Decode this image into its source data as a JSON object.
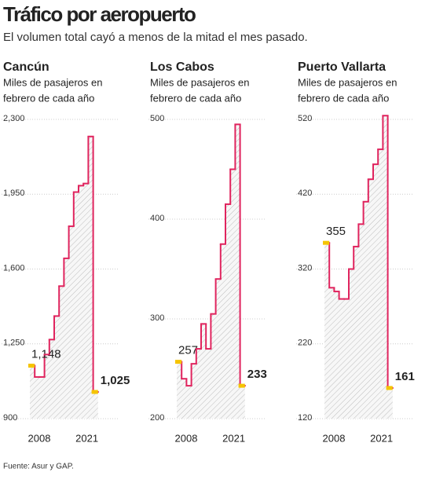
{
  "title": "Tráfico por aeropuerto",
  "subtitle": "El volumen total cayó a menos de la mitad el mes pasado.",
  "source": "Fuente: Asur y GAP.",
  "chart_data": [
    {
      "type": "step",
      "title": "Cancún",
      "subtitle_lines": [
        "Miles de pasajeros en",
        "febrero de cada año"
      ],
      "color": "#e0245e",
      "marker_color": "#f5c400",
      "categories": [
        "2008",
        null,
        null,
        null,
        null,
        null,
        null,
        null,
        null,
        null,
        null,
        null,
        null,
        "2021"
      ],
      "values": [
        1148,
        1095,
        1095,
        1200,
        1270,
        1380,
        1520,
        1650,
        1800,
        1960,
        1990,
        2000,
        2220,
        1025
      ],
      "value_labels": [
        "1,148",
        null,
        null,
        null,
        null,
        null,
        null,
        null,
        null,
        null,
        null,
        null,
        null,
        "1,025"
      ],
      "ylim": [
        900,
        2300
      ],
      "yticks": [
        900,
        {
          "value": 1250,
          "label": "1,250"
        },
        {
          "value": 1600,
          "label": "1,600"
        },
        {
          "value": 1950,
          "label": "1,950"
        },
        {
          "value": 2300,
          "label": "2,300"
        }
      ],
      "grid": true
    },
    {
      "type": "step",
      "title": "Los Cabos",
      "subtitle_lines": [
        "Miles de pasajeros en",
        "febrero de cada año"
      ],
      "color": "#e0245e",
      "marker_color": "#f5c400",
      "categories": [
        "2008",
        null,
        null,
        null,
        null,
        null,
        null,
        null,
        null,
        null,
        null,
        null,
        null,
        "2021"
      ],
      "values": [
        257,
        240,
        233,
        255,
        270,
        295,
        270,
        305,
        340,
        375,
        415,
        450,
        495,
        233
      ],
      "value_labels": [
        "257",
        null,
        null,
        null,
        null,
        null,
        null,
        null,
        null,
        null,
        null,
        null,
        null,
        "233"
      ],
      "ylim": [
        200,
        500
      ],
      "yticks": [
        200,
        300,
        400,
        500
      ],
      "grid": true
    },
    {
      "type": "step",
      "title": "Puerto Vallarta",
      "subtitle_lines": [
        "Miles de pasajeros en",
        "febrero de cada año"
      ],
      "color": "#e0245e",
      "marker_color": "#f5c400",
      "categories": [
        "2008",
        null,
        null,
        null,
        null,
        null,
        null,
        null,
        null,
        null,
        null,
        null,
        null,
        "2021"
      ],
      "values": [
        355,
        295,
        290,
        280,
        280,
        320,
        350,
        380,
        410,
        440,
        460,
        480,
        525,
        161
      ],
      "value_labels": [
        "355",
        null,
        null,
        null,
        null,
        null,
        null,
        null,
        null,
        null,
        null,
        null,
        null,
        "161"
      ],
      "ylim": [
        120,
        520
      ],
      "yticks": [
        120,
        220,
        320,
        420,
        520
      ],
      "grid": true
    }
  ]
}
